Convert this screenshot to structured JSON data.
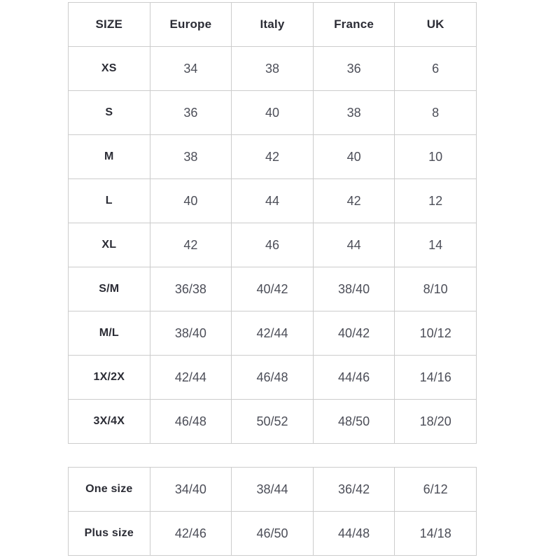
{
  "chart_data": [
    {
      "type": "table",
      "columns": [
        "SIZE",
        "Europe",
        "Italy",
        "France",
        "UK"
      ],
      "rows": [
        [
          "XS",
          "34",
          "38",
          "36",
          "6"
        ],
        [
          "S",
          "36",
          "40",
          "38",
          "8"
        ],
        [
          "M",
          "38",
          "42",
          "40",
          "10"
        ],
        [
          "L",
          "40",
          "44",
          "42",
          "12"
        ],
        [
          "XL",
          "42",
          "46",
          "44",
          "14"
        ],
        [
          "S/M",
          "36/38",
          "40/42",
          "38/40",
          "8/10"
        ],
        [
          "M/L",
          "38/40",
          "42/44",
          "40/42",
          "10/12"
        ],
        [
          "1X/2X",
          "42/44",
          "46/48",
          "44/46",
          "14/16"
        ],
        [
          "3X/4X",
          "46/48",
          "50/52",
          "48/50",
          "18/20"
        ]
      ]
    },
    {
      "type": "table",
      "columns": [],
      "rows": [
        [
          "One size",
          "34/40",
          "38/44",
          "36/42",
          "6/12"
        ],
        [
          "Plus size",
          "42/46",
          "46/50",
          "44/48",
          "14/18"
        ]
      ]
    }
  ],
  "colors": {
    "background": "#ffffff",
    "border": "#cccccc",
    "header_text": "#2b2c35",
    "value_text": "#4c4e58"
  }
}
